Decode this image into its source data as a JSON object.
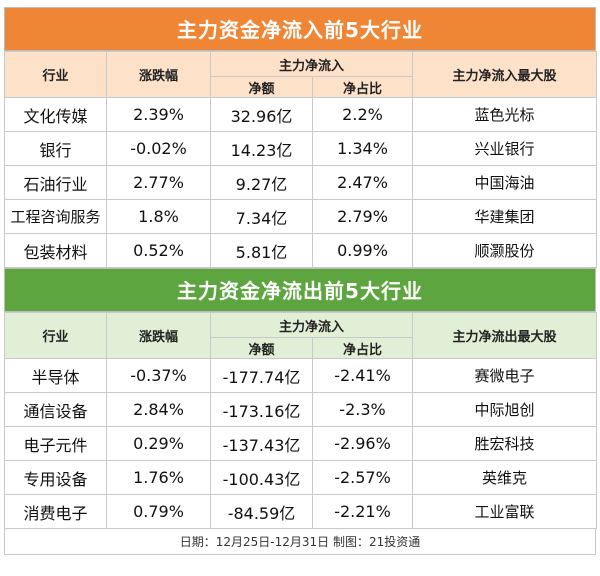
{
  "inflow": {
    "title": "主力资金净流入前5大行业",
    "headers": {
      "industry": "行业",
      "change": "涨跌幅",
      "main_net": "主力净流入",
      "net_amount": "净额",
      "net_ratio": "净占比",
      "top_stock": "主力净流入最大股"
    },
    "rows": [
      {
        "industry": "文化传媒",
        "change": "2.39%",
        "amount": "32.96亿",
        "ratio": "2.2%",
        "stock": "蓝色光标"
      },
      {
        "industry": "银行",
        "change": "-0.02%",
        "amount": "14.23亿",
        "ratio": "1.34%",
        "stock": "兴业银行"
      },
      {
        "industry": "石油行业",
        "change": "2.77%",
        "amount": "9.27亿",
        "ratio": "2.47%",
        "stock": "中国海油"
      },
      {
        "industry": "工程咨询服务",
        "change": "1.8%",
        "amount": "7.34亿",
        "ratio": "2.79%",
        "stock": "华建集团"
      },
      {
        "industry": "包装材料",
        "change": "0.52%",
        "amount": "5.81亿",
        "ratio": "0.99%",
        "stock": "顺灏股份"
      }
    ]
  },
  "outflow": {
    "title": "主力资金净流出前5大行业",
    "headers": {
      "industry": "行业",
      "change": "涨跌幅",
      "main_net": "主力净流入",
      "net_amount": "净额",
      "net_ratio": "净占比",
      "top_stock": "主力净流出最大股"
    },
    "rows": [
      {
        "industry": "半导体",
        "change": "-0.37%",
        "amount": "-177.74亿",
        "ratio": "-2.41%",
        "stock": "赛微电子"
      },
      {
        "industry": "通信设备",
        "change": "2.84%",
        "amount": "-173.16亿",
        "ratio": "-2.3%",
        "stock": "中际旭创"
      },
      {
        "industry": "电子元件",
        "change": "0.29%",
        "amount": "-137.43亿",
        "ratio": "-2.96%",
        "stock": "胜宏科技"
      },
      {
        "industry": "专用设备",
        "change": "1.76%",
        "amount": "-100.43亿",
        "ratio": "-2.57%",
        "stock": "英维克"
      },
      {
        "industry": "消费电子",
        "change": "0.79%",
        "amount": "-84.59亿",
        "ratio": "-2.21%",
        "stock": "工业富联"
      }
    ]
  },
  "footer": "日期：12月25日-12月31日 制图：21投资通",
  "colors": {
    "orange_banner": "#ef8636",
    "orange_header": "#fde1c9",
    "green_banner": "#5da53f",
    "green_header": "#e2efd7"
  }
}
